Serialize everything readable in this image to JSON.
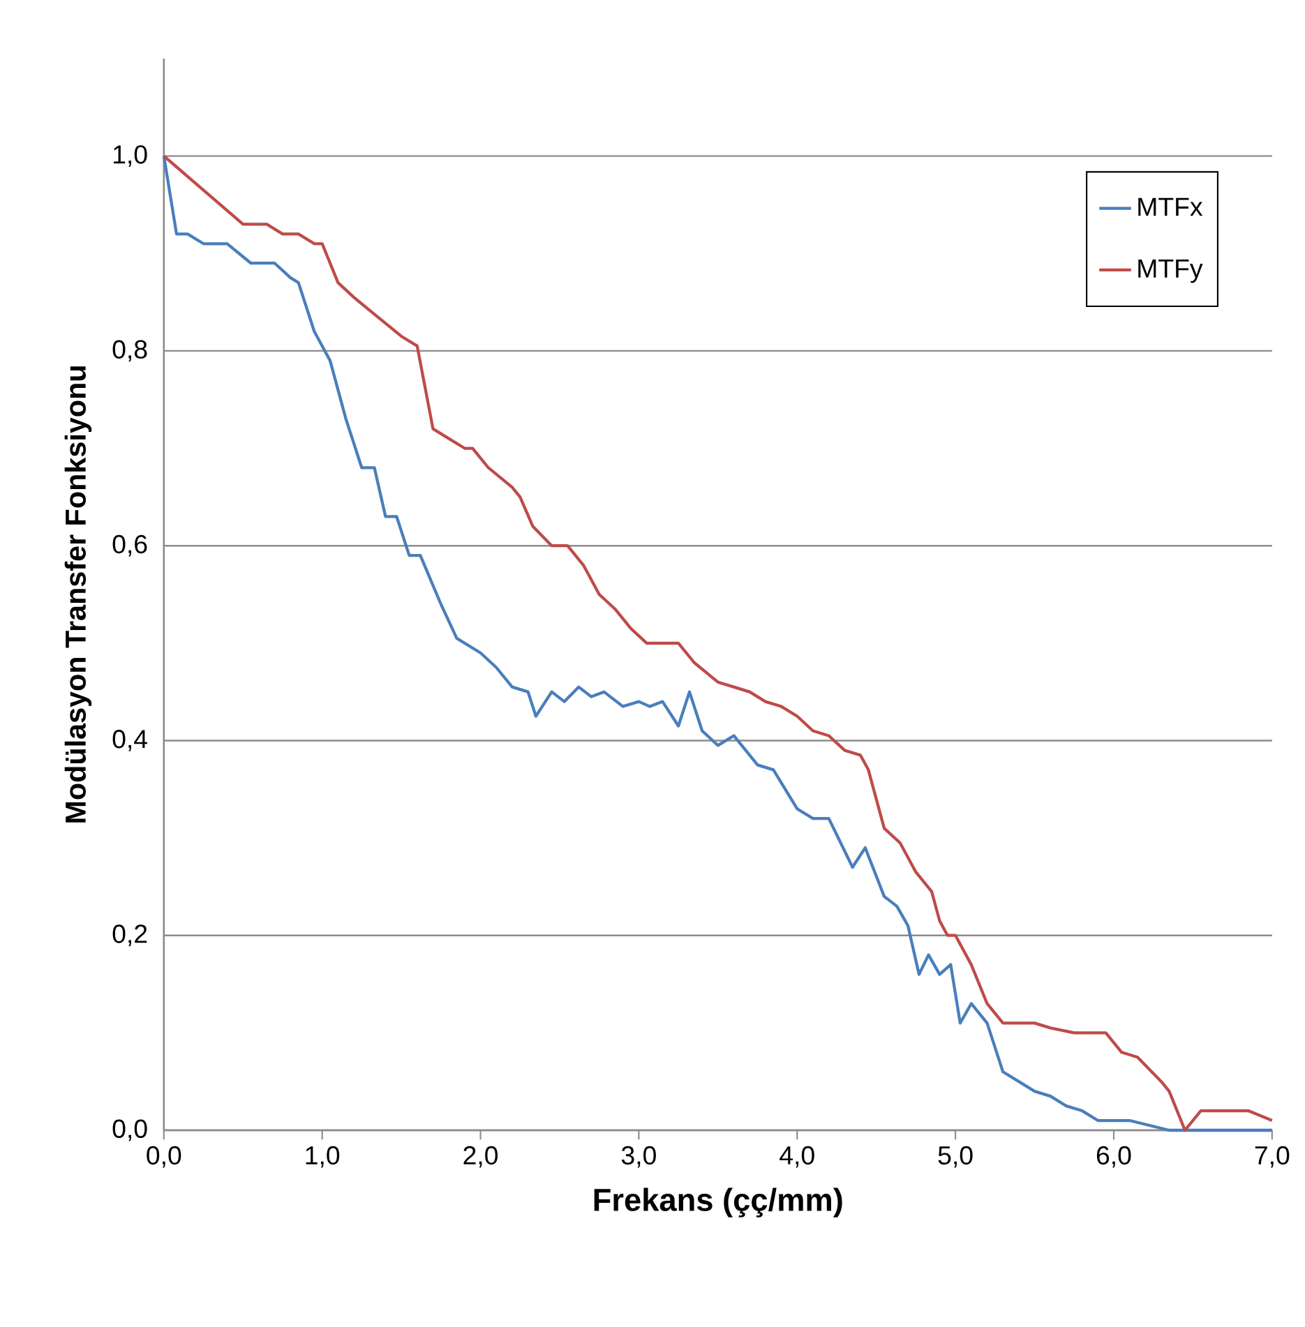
{
  "chart_data": {
    "type": "line",
    "xlabel": "Frekans (çç/mm)",
    "ylabel": "Modülasyon Transfer Fonksiyonu",
    "xlim": [
      0,
      7
    ],
    "ylim": [
      0,
      1.1
    ],
    "xticks": [
      {
        "value": 0,
        "label": "0,0"
      },
      {
        "value": 1,
        "label": "1,0"
      },
      {
        "value": 2,
        "label": "2,0"
      },
      {
        "value": 3,
        "label": "3,0"
      },
      {
        "value": 4,
        "label": "4,0"
      },
      {
        "value": 5,
        "label": "5,0"
      },
      {
        "value": 6,
        "label": "6,0"
      },
      {
        "value": 7,
        "label": "7,0"
      }
    ],
    "yticks": [
      {
        "value": 0,
        "label": "0,0"
      },
      {
        "value": 0.2,
        "label": "0,2"
      },
      {
        "value": 0.4,
        "label": "0,4"
      },
      {
        "value": 0.6,
        "label": "0,6"
      },
      {
        "value": 0.8,
        "label": "0,8"
      },
      {
        "value": 1.0,
        "label": "1,0"
      }
    ],
    "grid": "y",
    "legend": "top right",
    "marker": "none",
    "line_style": "solid",
    "series": [
      {
        "name": "MTFx",
        "color": "#4a7ebb",
        "x": [
          0,
          0.08,
          0.15,
          0.25,
          0.4,
          0.55,
          0.7,
          0.8,
          0.85,
          0.95,
          1.05,
          1.15,
          1.25,
          1.33,
          1.4,
          1.47,
          1.55,
          1.62,
          1.75,
          1.85,
          2.0,
          2.1,
          2.2,
          2.3,
          2.35,
          2.45,
          2.53,
          2.62,
          2.7,
          2.78,
          2.9,
          3.0,
          3.07,
          3.15,
          3.25,
          3.32,
          3.4,
          3.5,
          3.6,
          3.75,
          3.85,
          4.0,
          4.1,
          4.2,
          4.35,
          4.43,
          4.55,
          4.63,
          4.7,
          4.77,
          4.83,
          4.9,
          4.97,
          5.03,
          5.1,
          5.2,
          5.3,
          5.4,
          5.5,
          5.6,
          5.7,
          5.8,
          5.9,
          6.1,
          6.35,
          7.0
        ],
        "values": [
          1.0,
          0.92,
          0.92,
          0.91,
          0.91,
          0.89,
          0.89,
          0.875,
          0.87,
          0.82,
          0.79,
          0.73,
          0.68,
          0.68,
          0.63,
          0.63,
          0.59,
          0.59,
          0.54,
          0.505,
          0.49,
          0.475,
          0.455,
          0.45,
          0.425,
          0.45,
          0.44,
          0.455,
          0.445,
          0.45,
          0.435,
          0.44,
          0.435,
          0.44,
          0.415,
          0.45,
          0.41,
          0.395,
          0.405,
          0.375,
          0.37,
          0.33,
          0.32,
          0.32,
          0.27,
          0.29,
          0.24,
          0.23,
          0.21,
          0.16,
          0.18,
          0.16,
          0.17,
          0.11,
          0.13,
          0.11,
          0.06,
          0.05,
          0.04,
          0.035,
          0.025,
          0.02,
          0.01,
          0.01,
          0.0,
          0.0
        ]
      },
      {
        "name": "MTFy",
        "color": "#be4b48",
        "x": [
          0,
          0.5,
          0.65,
          0.75,
          0.85,
          0.95,
          1.0,
          1.1,
          1.2,
          1.35,
          1.5,
          1.6,
          1.7,
          1.8,
          1.9,
          1.95,
          2.05,
          2.2,
          2.25,
          2.33,
          2.45,
          2.55,
          2.65,
          2.75,
          2.85,
          2.95,
          3.05,
          3.25,
          3.35,
          3.5,
          3.6,
          3.7,
          3.8,
          3.9,
          4.0,
          4.1,
          4.2,
          4.3,
          4.4,
          4.45,
          4.55,
          4.65,
          4.75,
          4.85,
          4.9,
          4.95,
          5.0,
          5.1,
          5.2,
          5.3,
          5.5,
          5.6,
          5.75,
          5.95,
          6.05,
          6.15,
          6.3,
          6.35,
          6.45,
          6.55,
          6.85,
          7.0
        ],
        "values": [
          1.0,
          0.93,
          0.93,
          0.92,
          0.92,
          0.91,
          0.91,
          0.87,
          0.855,
          0.835,
          0.815,
          0.805,
          0.72,
          0.71,
          0.7,
          0.7,
          0.68,
          0.66,
          0.65,
          0.62,
          0.6,
          0.6,
          0.58,
          0.55,
          0.535,
          0.515,
          0.5,
          0.5,
          0.48,
          0.46,
          0.455,
          0.45,
          0.44,
          0.435,
          0.425,
          0.41,
          0.405,
          0.39,
          0.385,
          0.37,
          0.31,
          0.295,
          0.265,
          0.245,
          0.215,
          0.2,
          0.2,
          0.17,
          0.13,
          0.11,
          0.11,
          0.105,
          0.1,
          0.1,
          0.08,
          0.075,
          0.05,
          0.04,
          0.0,
          0.02,
          0.02,
          0.01
        ]
      }
    ]
  }
}
